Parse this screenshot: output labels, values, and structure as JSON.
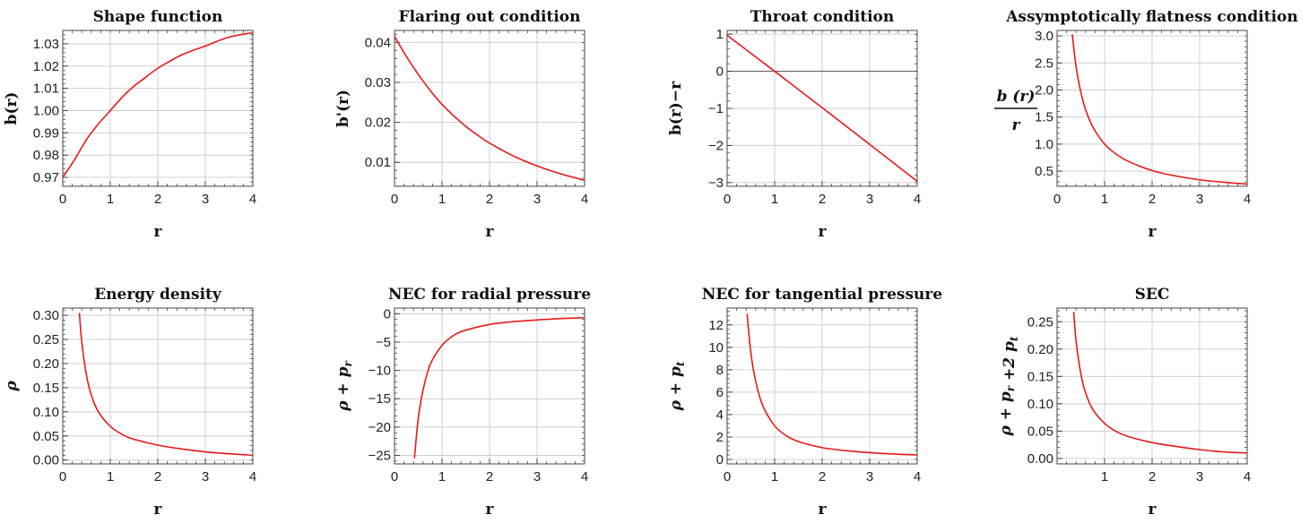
{
  "chart_data": [
    {
      "type": "line",
      "title": "Shape function",
      "xlabel": "r",
      "ylabel": "b(r)",
      "xlim": [
        0,
        4
      ],
      "ylim": [
        0.966,
        1.036
      ],
      "xticks": [
        "0",
        "1",
        "2",
        "3",
        "4"
      ],
      "yticks": [
        "0.97",
        "0.98",
        "0.99",
        "1.00",
        "1.01",
        "1.02",
        "1.03"
      ],
      "ytick_values": [
        0.97,
        0.98,
        0.99,
        1.0,
        1.01,
        1.02,
        1.03
      ],
      "grid": true,
      "series": [
        {
          "color": "#e8191a",
          "points": [
            [
              0,
              0.97
            ],
            [
              0.25,
              0.978
            ],
            [
              0.5,
              0.987
            ],
            [
              0.75,
              0.994
            ],
            [
              1.0,
              1.0
            ],
            [
              1.25,
              1.006
            ],
            [
              1.5,
              1.011
            ],
            [
              1.75,
              1.015
            ],
            [
              2.0,
              1.019
            ],
            [
              2.5,
              1.025
            ],
            [
              3.0,
              1.029
            ],
            [
              3.5,
              1.033
            ],
            [
              4.0,
              1.035
            ]
          ]
        }
      ]
    },
    {
      "type": "line",
      "title": "Flaring out condition",
      "xlabel": "r",
      "ylabel": "b'(r)",
      "xlim": [
        0,
        4
      ],
      "ylim": [
        0.004,
        0.043
      ],
      "xticks": [
        "0",
        "1",
        "2",
        "3",
        "4"
      ],
      "yticks": [
        "0.01",
        "0.02",
        "0.03",
        "0.04"
      ],
      "ytick_values": [
        0.01,
        0.02,
        0.03,
        0.04
      ],
      "grid": true,
      "series": [
        {
          "color": "#e8191a",
          "points": [
            [
              0,
              0.0415
            ],
            [
              0.25,
              0.0365
            ],
            [
              0.5,
              0.032
            ],
            [
              0.75,
              0.028
            ],
            [
              1.0,
              0.0245
            ],
            [
              1.25,
              0.0216
            ],
            [
              1.5,
              0.019
            ],
            [
              1.75,
              0.0168
            ],
            [
              2.0,
              0.0148
            ],
            [
              2.5,
              0.0116
            ],
            [
              3.0,
              0.0091
            ],
            [
              3.5,
              0.0071
            ],
            [
              4.0,
              0.0055
            ]
          ]
        }
      ]
    },
    {
      "type": "line",
      "title": "Throat condition",
      "xlabel": "r",
      "ylabel": "b(r)−r",
      "xlim": [
        0,
        4
      ],
      "ylim": [
        -3.1,
        1.1
      ],
      "xticks": [
        "0",
        "1",
        "2",
        "3",
        "4"
      ],
      "yticks": [
        "−3",
        "−2",
        "−1",
        "0",
        "1"
      ],
      "ytick_values": [
        -3,
        -2,
        -1,
        0,
        1
      ],
      "grid": true,
      "reference_line": {
        "y": 0,
        "color": "#555555"
      },
      "series": [
        {
          "color": "#e8191a",
          "points": [
            [
              0,
              0.97
            ],
            [
              1.0,
              0.0
            ],
            [
              2.0,
              -0.981
            ],
            [
              3.0,
              -1.971
            ],
            [
              4.0,
              -2.965
            ]
          ]
        }
      ]
    },
    {
      "type": "line",
      "title": "Assymptotically flatness condition",
      "xlabel": "r",
      "ylabel_top": "b (r)",
      "ylabel_bottom": "r",
      "xlim": [
        0,
        4
      ],
      "ylim": [
        0.22,
        3.1
      ],
      "xticks": [
        "0",
        "1",
        "2",
        "3",
        "4"
      ],
      "yticks": [
        "0.5",
        "1.0",
        "1.5",
        "2.0",
        "2.5",
        "3.0"
      ],
      "ytick_values": [
        0.5,
        1.0,
        1.5,
        2.0,
        2.5,
        3.0
      ],
      "grid": true,
      "series": [
        {
          "color": "#e8191a",
          "points": [
            [
              0.32,
              3.03
            ],
            [
              0.4,
              2.43
            ],
            [
              0.5,
              1.96
            ],
            [
              0.6,
              1.64
            ],
            [
              0.75,
              1.32
            ],
            [
              1.0,
              1.0
            ],
            [
              1.25,
              0.81
            ],
            [
              1.5,
              0.68
            ],
            [
              2.0,
              0.51
            ],
            [
              2.5,
              0.41
            ],
            [
              3.0,
              0.34
            ],
            [
              3.5,
              0.295
            ],
            [
              4.0,
              0.26
            ]
          ]
        }
      ]
    },
    {
      "type": "line",
      "title": "Energy density",
      "xlabel": "r",
      "ylabel": "ρ",
      "xlim": [
        0,
        4
      ],
      "ylim": [
        -0.008,
        0.315
      ],
      "xticks": [
        "0",
        "1",
        "2",
        "3",
        "4"
      ],
      "yticks": [
        "0.00",
        "0.05",
        "0.10",
        "0.15",
        "0.20",
        "0.25",
        "0.30"
      ],
      "ytick_values": [
        0,
        0.05,
        0.1,
        0.15,
        0.2,
        0.25,
        0.3
      ],
      "grid": true,
      "series": [
        {
          "color": "#e8191a",
          "points": [
            [
              0.35,
              0.305
            ],
            [
              0.4,
              0.245
            ],
            [
              0.5,
              0.175
            ],
            [
              0.6,
              0.135
            ],
            [
              0.75,
              0.1
            ],
            [
              1.0,
              0.07
            ],
            [
              1.25,
              0.053
            ],
            [
              1.5,
              0.043
            ],
            [
              2.0,
              0.031
            ],
            [
              2.5,
              0.023
            ],
            [
              3.0,
              0.017
            ],
            [
              3.5,
              0.013
            ],
            [
              4.0,
              0.01
            ]
          ]
        }
      ]
    },
    {
      "type": "line",
      "title": "NEC for radial pressure",
      "xlabel": "r",
      "ylabel": "ρ + p_r",
      "xlim": [
        0,
        4
      ],
      "ylim": [
        -26.5,
        1.0
      ],
      "xticks": [
        "0",
        "1",
        "2",
        "3",
        "4"
      ],
      "yticks": [
        "0",
        "−5",
        "−10",
        "−15",
        "−20",
        "−25"
      ],
      "ytick_values": [
        0,
        -5,
        -10,
        -15,
        -20,
        -25
      ],
      "grid": true,
      "series": [
        {
          "color": "#e8191a",
          "points": [
            [
              0.42,
              -25.5
            ],
            [
              0.5,
              -18.5
            ],
            [
              0.6,
              -13.5
            ],
            [
              0.75,
              -9.0
            ],
            [
              1.0,
              -5.6
            ],
            [
              1.25,
              -3.8
            ],
            [
              1.5,
              -2.9
            ],
            [
              2.0,
              -1.9
            ],
            [
              2.5,
              -1.4
            ],
            [
              3.0,
              -1.1
            ],
            [
              3.5,
              -0.85
            ],
            [
              4.0,
              -0.7
            ]
          ]
        }
      ]
    },
    {
      "type": "line",
      "title": "NEC for tangential pressure",
      "xlabel": "r",
      "ylabel": "ρ + p_t",
      "xlim": [
        0,
        4
      ],
      "ylim": [
        -0.4,
        13.5
      ],
      "xticks": [
        "0",
        "1",
        "2",
        "3",
        "4"
      ],
      "yticks": [
        "0",
        "2",
        "4",
        "6",
        "8",
        "10",
        "12"
      ],
      "ytick_values": [
        0,
        2,
        4,
        6,
        8,
        10,
        12
      ],
      "grid": true,
      "series": [
        {
          "color": "#e8191a",
          "points": [
            [
              0.42,
              13.0
            ],
            [
              0.5,
              9.5
            ],
            [
              0.6,
              7.0
            ],
            [
              0.75,
              4.8
            ],
            [
              1.0,
              3.0
            ],
            [
              1.25,
              2.1
            ],
            [
              1.5,
              1.6
            ],
            [
              2.0,
              1.05
            ],
            [
              2.5,
              0.78
            ],
            [
              3.0,
              0.6
            ],
            [
              3.5,
              0.48
            ],
            [
              4.0,
              0.4
            ]
          ]
        }
      ]
    },
    {
      "type": "line",
      "title": "SEC",
      "xlabel": "r",
      "ylabel": "ρ + p_r +2 p_t",
      "xlim": [
        0,
        4
      ],
      "ylim": [
        -0.01,
        0.275
      ],
      "xticks": [
        "1",
        "2",
        "3",
        "4"
      ],
      "xtick_values": [
        1,
        2,
        3,
        4
      ],
      "yticks": [
        "0.00",
        "0.05",
        "0.10",
        "0.15",
        "0.20",
        "0.25"
      ],
      "ytick_values": [
        0,
        0.05,
        0.1,
        0.15,
        0.2,
        0.25
      ],
      "grid": true,
      "series": [
        {
          "color": "#e8191a",
          "points": [
            [
              0.35,
              0.268
            ],
            [
              0.4,
              0.215
            ],
            [
              0.5,
              0.155
            ],
            [
              0.6,
              0.12
            ],
            [
              0.75,
              0.09
            ],
            [
              1.0,
              0.064
            ],
            [
              1.25,
              0.049
            ],
            [
              1.5,
              0.04
            ],
            [
              2.0,
              0.029
            ],
            [
              2.5,
              0.022
            ],
            [
              3.0,
              0.016
            ],
            [
              3.5,
              0.012
            ],
            [
              4.0,
              0.01
            ]
          ]
        }
      ]
    }
  ]
}
